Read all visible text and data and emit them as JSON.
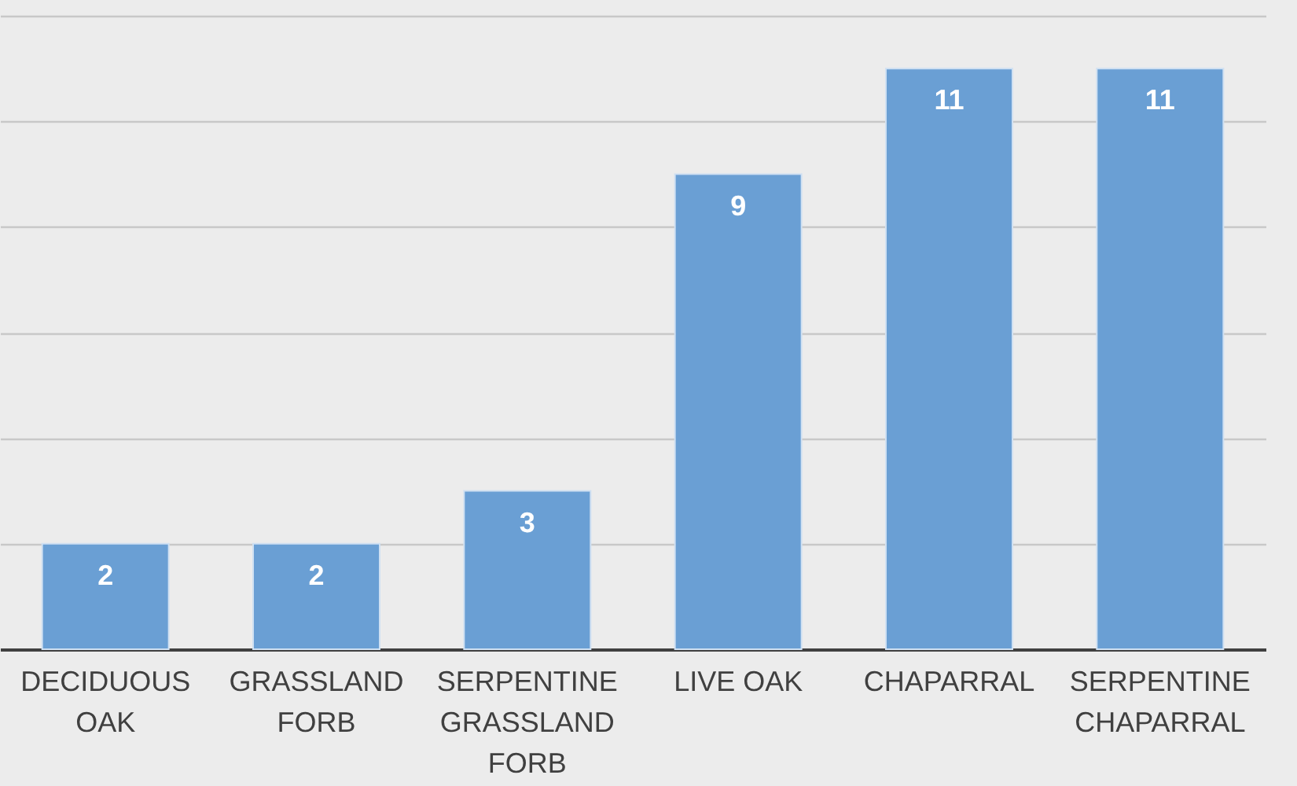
{
  "chart_data": {
    "type": "bar",
    "categories": [
      "DECIDUOUS OAK",
      "GRASSLAND FORB",
      "SERPENTINE GRASSLAND FORB",
      "LIVE OAK",
      "CHAPARRAL",
      "SERPENTINE CHAPARRAL"
    ],
    "values": [
      2,
      2,
      3,
      9,
      11,
      11
    ],
    "color": "#6a9fd4",
    "ylim": [
      0,
      12
    ],
    "yticks": [
      {
        "value": 0,
        "label": null
      },
      {
        "value": 2,
        "label": null
      },
      {
        "value": 4,
        "label": null
      },
      {
        "value": 6,
        "label": null
      },
      {
        "value": 8,
        "label": null
      },
      {
        "value": 10,
        "label": null
      },
      {
        "value": 12,
        "label": null
      }
    ],
    "grid": "y",
    "tick_labels": "x",
    "data_labels": true
  }
}
